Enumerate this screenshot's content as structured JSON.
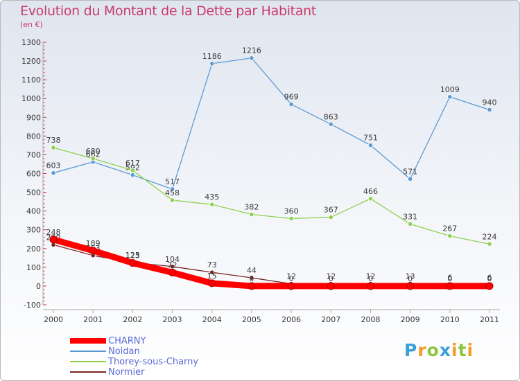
{
  "chart_data": {
    "type": "line",
    "title": "Evolution du Montant de la Dette par Habitant",
    "subtitle": "(en €)",
    "xlabel": "",
    "ylabel": "",
    "x": [
      "2000",
      "2001",
      "2002",
      "2003",
      "2004",
      "2005",
      "2006",
      "2007",
      "2008",
      "2009",
      "2010",
      "2011"
    ],
    "ylim": [
      -100,
      1300
    ],
    "yticks": [
      -100,
      0,
      100,
      200,
      300,
      400,
      500,
      600,
      700,
      800,
      900,
      1000,
      1100,
      1200,
      1300
    ],
    "grid": false,
    "legend_position": "bottom-left",
    "series": [
      {
        "name": "Noidan",
        "color": "#5b9bd5",
        "values": [
          603,
          662,
          592,
          517,
          1186,
          1216,
          969,
          863,
          751,
          571,
          1009,
          940
        ],
        "labels": [
          "603",
          "662",
          "592",
          "517",
          "1186",
          "1216",
          "969",
          "863",
          "751",
          "571",
          "1009",
          "940"
        ]
      },
      {
        "name": "Thorey-sous-Charny",
        "color": "#8fd14f",
        "values": [
          738,
          680,
          617,
          458,
          435,
          382,
          360,
          367,
          466,
          331,
          267,
          224
        ],
        "labels": [
          "738",
          "680",
          "617",
          "458",
          "435",
          "382",
          "360",
          "367",
          "466",
          "331",
          "267",
          "224"
        ]
      },
      {
        "name": "Normier",
        "color": "#7a2222",
        "values": [
          220,
          163,
          125,
          104,
          73,
          44,
          12,
          12,
          12,
          13,
          6,
          6
        ],
        "labels": [
          "220",
          "163",
          "125",
          "104",
          "73",
          "44",
          "12",
          "12",
          "12",
          "13",
          "6",
          "6"
        ]
      },
      {
        "name": "CHARNY",
        "color": "#ff0000",
        "values": [
          248,
          189,
          123,
          72,
          15,
          0,
          0,
          0,
          0,
          0,
          0,
          0
        ],
        "labels": [
          "248",
          "189",
          "123",
          "72",
          "15",
          "0",
          "0",
          "0",
          "0",
          "0",
          "0",
          "0"
        ]
      }
    ]
  },
  "legend": {
    "items": [
      {
        "label": "CHARNY",
        "color": "#ff0000"
      },
      {
        "label": "Noidan",
        "color": "#5b9bd5"
      },
      {
        "label": "Thorey-sous-Charny",
        "color": "#8fd14f"
      },
      {
        "label": "Normier",
        "color": "#7a2222"
      }
    ]
  },
  "logo": {
    "letters": [
      "P",
      "r",
      "o",
      "x",
      "i",
      "t",
      "i"
    ],
    "colors": [
      "#3aa0d8",
      "#f59a23",
      "#8cc63f",
      "#3aa0d8",
      "#f59a23",
      "#8cc63f",
      "#f59a23"
    ]
  }
}
